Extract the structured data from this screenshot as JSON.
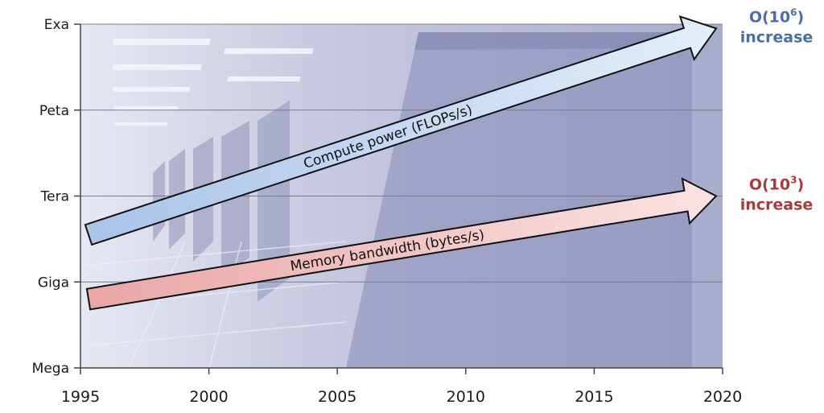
{
  "chart_data": {
    "type": "line",
    "x_axis": {
      "ticks": [
        1995,
        2000,
        2005,
        2010,
        2015,
        2020
      ],
      "range": [
        1995,
        2020
      ]
    },
    "y_axis": {
      "ticks": [
        "Mega",
        "Giga",
        "Tera",
        "Peta",
        "Exa"
      ],
      "scale": "log",
      "range": [
        "Mega",
        "Exa"
      ]
    },
    "grid": true,
    "series": [
      {
        "name": "Compute power (FLOPs/s)",
        "start": {
          "year": 1995,
          "level": 1.55
        },
        "end": {
          "year": 2020,
          "level": 3.95
        },
        "color": "#c9daf0",
        "annotation": {
          "base": "O(10",
          "sup": "6",
          "close": ")",
          "line2": "increase",
          "color": "#4a6fa5"
        }
      },
      {
        "name": "Memory bandwidth (bytes/s)",
        "start": {
          "year": 1995,
          "level": 0.8
        },
        "end": {
          "year": 2020,
          "level": 2.0
        },
        "color": "#f2c4c4",
        "annotation": {
          "base": "O(10",
          "sup": "3",
          "close": ")",
          "line2": "increase",
          "color": "#a83a3a"
        }
      }
    ]
  },
  "colors": {
    "background_photo": "#b9bcd8",
    "arrow_outline": "#111111"
  }
}
